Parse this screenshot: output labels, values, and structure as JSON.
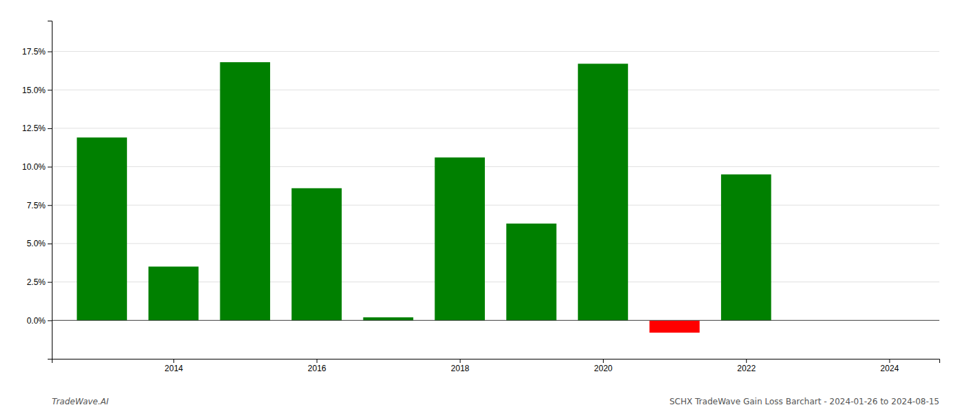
{
  "chart_data": {
    "type": "bar",
    "x": [
      2013,
      2014,
      2015,
      2016,
      2017,
      2018,
      2019,
      2020,
      2021,
      2022
    ],
    "values": [
      0.119,
      0.035,
      0.168,
      0.086,
      0.002,
      0.106,
      0.063,
      0.167,
      -0.008,
      0.095
    ],
    "colors": [
      "#008000",
      "#008000",
      "#008000",
      "#008000",
      "#008000",
      "#008000",
      "#008000",
      "#008000",
      "#ff0000",
      "#008000"
    ],
    "xlim": [
      2012.3,
      2024.7
    ],
    "xticks": [
      2014,
      2016,
      2018,
      2020,
      2022,
      2024
    ],
    "ylim": [
      -0.025,
      0.195
    ],
    "yticks": [
      {
        "value": 0.0,
        "label": "0.0%"
      },
      {
        "value": 0.025,
        "label": "2.5%"
      },
      {
        "value": 0.05,
        "label": "5.0%"
      },
      {
        "value": 0.075,
        "label": "7.5%"
      },
      {
        "value": 0.1,
        "label": "10.0%"
      },
      {
        "value": 0.125,
        "label": "12.5%"
      },
      {
        "value": 0.15,
        "label": "15.0%"
      },
      {
        "value": 0.175,
        "label": "17.5%"
      }
    ],
    "grid": true,
    "annotations": [
      "TradeWave.AI",
      "SCHX TradeWave Gain Loss Barchart - 2024-01-26 to 2024-08-15"
    ]
  }
}
